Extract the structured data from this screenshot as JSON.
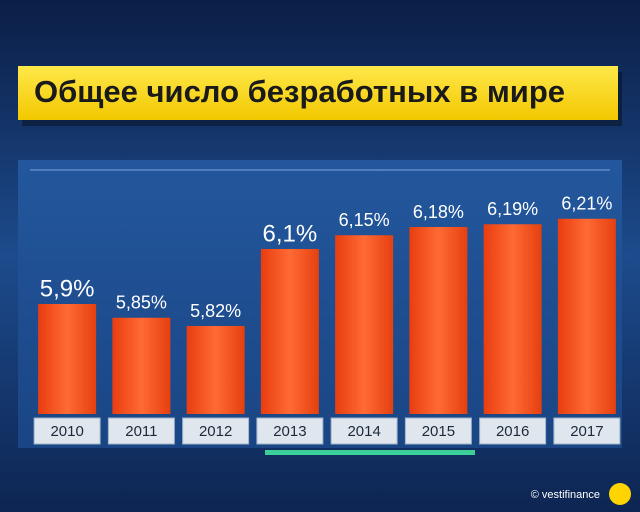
{
  "chart_data": {
    "type": "bar",
    "title": "Общее число безработных в мире",
    "categories": [
      "2010",
      "2011",
      "2012",
      "2013",
      "2014",
      "2015",
      "2016",
      "2017"
    ],
    "values": [
      5.9,
      5.85,
      5.82,
      6.1,
      6.15,
      6.18,
      6.19,
      6.21
    ],
    "value_labels": [
      "5,9%",
      "5,85%",
      "5,82%",
      "6,1%",
      "6,15%",
      "6,18%",
      "6,19%",
      "6,21%"
    ],
    "color": "#ff5424",
    "ylim": [
      5.5,
      6.3
    ],
    "source": "© vestifinance"
  }
}
